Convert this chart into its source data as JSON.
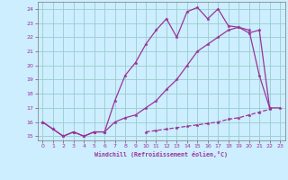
{
  "xlabel": "Windchill (Refroidissement éolien,°C)",
  "bg_color": "#cceeff",
  "line_color": "#993399",
  "grid_color": "#99cccc",
  "xlim": [
    -0.5,
    23.5
  ],
  "ylim": [
    14.7,
    24.5
  ],
  "yticks": [
    15,
    16,
    17,
    18,
    19,
    20,
    21,
    22,
    23,
    24
  ],
  "xticks": [
    0,
    1,
    2,
    3,
    4,
    5,
    6,
    7,
    8,
    9,
    10,
    11,
    12,
    13,
    14,
    15,
    16,
    17,
    18,
    19,
    20,
    21,
    22,
    23
  ],
  "line1_x": [
    0,
    1,
    2,
    3,
    4,
    5,
    6,
    7,
    8,
    9,
    10,
    11,
    12,
    13,
    14,
    15,
    16,
    17,
    18,
    19,
    20,
    21,
    22
  ],
  "line1_y": [
    16.0,
    15.5,
    15.0,
    15.3,
    15.0,
    15.3,
    15.3,
    17.5,
    19.3,
    20.2,
    21.5,
    22.5,
    23.3,
    22.0,
    23.8,
    24.1,
    23.3,
    24.0,
    22.8,
    22.7,
    22.5,
    19.3,
    17.0
  ],
  "line2_x": [
    0,
    1,
    2,
    3,
    4,
    5,
    6,
    7,
    8,
    9,
    10,
    11,
    12,
    13,
    14,
    15,
    16,
    17,
    18,
    19,
    20,
    21,
    22,
    23
  ],
  "line2_y": [
    16.0,
    15.5,
    15.0,
    15.3,
    15.0,
    15.3,
    15.3,
    16.0,
    16.3,
    16.5,
    17.0,
    17.5,
    18.3,
    19.0,
    20.0,
    21.0,
    21.5,
    22.0,
    22.5,
    22.7,
    22.3,
    22.5,
    17.0,
    17.0
  ],
  "line3_x": [
    0,
    1,
    2,
    3,
    4,
    5,
    6,
    7,
    8,
    9,
    10,
    11,
    12,
    13,
    14,
    15,
    16,
    17,
    18,
    19,
    20,
    21,
    22,
    23
  ],
  "line3_y": [
    null,
    null,
    null,
    null,
    null,
    null,
    null,
    null,
    null,
    null,
    15.3,
    15.4,
    15.5,
    15.6,
    15.7,
    15.8,
    15.9,
    16.0,
    16.2,
    16.3,
    16.5,
    16.7,
    16.9,
    null
  ]
}
